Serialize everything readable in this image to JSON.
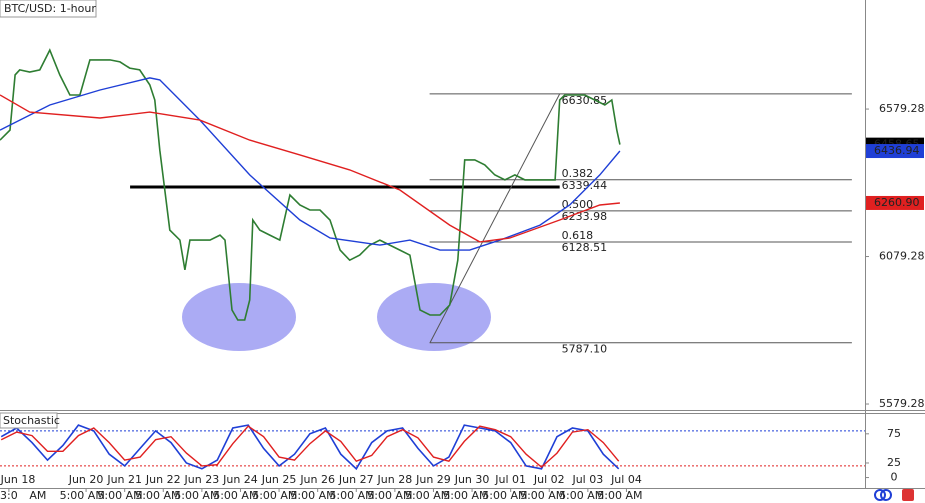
{
  "chart_data": [
    {
      "type": "line",
      "title": "BTC/USD: 1-hour",
      "xlim": [
        -0.23,
        22.18
      ],
      "ylim": [
        5559,
        6949
      ],
      "yticks": [
        5579.28,
        6079.28,
        6579.28
      ],
      "xticks": [
        {
          "value": 0,
          "label": "Jun 18"
        },
        {
          "value": 2,
          "label": "Jun 20"
        },
        {
          "value": 3,
          "label": "Jun 21"
        },
        {
          "value": 4,
          "label": "Jun 22"
        },
        {
          "value": 5,
          "label": "Jun 23"
        },
        {
          "value": 6,
          "label": "Jun 24"
        },
        {
          "value": 7,
          "label": "Jun 25"
        },
        {
          "value": 8,
          "label": "Jun 26"
        },
        {
          "value": 9,
          "label": "Jun 27"
        },
        {
          "value": 10,
          "label": "Jun 28"
        },
        {
          "value": 11,
          "label": "Jun 29"
        },
        {
          "value": 12,
          "label": "Jun 30"
        },
        {
          "value": 13,
          "label": "Jul 01"
        },
        {
          "value": 14,
          "label": "Jul 02"
        },
        {
          "value": 15,
          "label": "Jul 03"
        },
        {
          "value": 16,
          "label": "Jul 04"
        }
      ],
      "xticks_time": [
        {
          "value": 0.0,
          "label": "3:0"
        },
        {
          "value": 0.75,
          "label": "AM"
        },
        {
          "value": 1.9,
          "label": "5:00 AM"
        },
        {
          "value": 2.88,
          "label": "5:00 AM"
        },
        {
          "value": 3.86,
          "label": "5:00 AM"
        },
        {
          "value": 4.87,
          "label": "5:00 AM"
        },
        {
          "value": 5.88,
          "label": "5:00 AM"
        },
        {
          "value": 6.89,
          "label": "5:00 AM"
        },
        {
          "value": 7.88,
          "label": "5:00 AM"
        },
        {
          "value": 8.89,
          "label": "5:00 AM"
        },
        {
          "value": 9.87,
          "label": "5:00 AM"
        },
        {
          "value": 10.85,
          "label": "5:00 AM"
        },
        {
          "value": 11.84,
          "label": "5:00 AM"
        },
        {
          "value": 12.85,
          "label": "5:00 AM"
        },
        {
          "value": 13.83,
          "label": "5:00 AM"
        },
        {
          "value": 14.84,
          "label": "5:00 AM"
        },
        {
          "value": 15.83,
          "label": "5:00 AM"
        }
      ],
      "series": [
        {
          "color": "#2e7d32",
          "x": [
            -0.23,
            0.03,
            0.16,
            0.28,
            0.54,
            0.8,
            1.06,
            1.32,
            1.58,
            1.84,
            2.1,
            2.36,
            2.62,
            2.88,
            3.13,
            3.39,
            3.65,
            3.78,
            3.91,
            4.04,
            4.17,
            4.43,
            4.56,
            4.69,
            4.95,
            5.21,
            5.47,
            5.6,
            5.78,
            5.93,
            6.11,
            6.24,
            6.32,
            6.5,
            6.76,
            7.02,
            7.28,
            7.54,
            7.8,
            8.06,
            8.32,
            8.58,
            8.83,
            9.09,
            9.35,
            9.61,
            9.87,
            10.13,
            10.39,
            10.65,
            10.91,
            11.17,
            11.42,
            11.63,
            11.74,
            11.81,
            12.07,
            12.33,
            12.59,
            12.85,
            13.11,
            13.37,
            13.63,
            13.89,
            14.15,
            14.27,
            14.4,
            14.66,
            14.92,
            15.18,
            15.44,
            15.62,
            15.75,
            15.83
          ],
          "values": [
            6474,
            6508,
            6695,
            6712,
            6705,
            6712,
            6779,
            6695,
            6627,
            6627,
            6746,
            6746,
            6746,
            6739,
            6718,
            6712,
            6661,
            6610,
            6440,
            6305,
            6169,
            6135,
            6034,
            6135,
            6135,
            6135,
            6152,
            6135,
            5898,
            5864,
            5864,
            5932,
            6203,
            6169,
            6152,
            6135,
            6288,
            6254,
            6237,
            6237,
            6203,
            6101,
            6067,
            6084,
            6118,
            6135,
            6118,
            6101,
            6084,
            5898,
            5881,
            5881,
            5915,
            6067,
            6271,
            6407,
            6407,
            6390,
            6356,
            6339,
            6356,
            6339,
            6339,
            6339,
            6339,
            6610,
            6627,
            6627,
            6627,
            6610,
            6593,
            6610,
            6508,
            6458.65
          ]
        },
        {
          "color": "#1f3fd6",
          "x": [
            -0.23,
            1.06,
            2.36,
            3.65,
            3.91,
            4.95,
            6.24,
            7.54,
            8.32,
            9.61,
            10.39,
            11.17,
            11.94,
            12.72,
            13.76,
            14.53,
            15.31,
            15.83
          ],
          "values": [
            6508,
            6593,
            6644,
            6685,
            6678,
            6542,
            6356,
            6203,
            6142,
            6118,
            6135,
            6101,
            6101,
            6135,
            6186,
            6254,
            6356,
            6436.94
          ]
        },
        {
          "color": "#e02020",
          "x": [
            -0.23,
            0.54,
            2.36,
            3.65,
            4.95,
            6.24,
            7.54,
            8.83,
            10.13,
            11.42,
            12.2,
            12.98,
            14.27,
            15.31,
            15.83
          ],
          "values": [
            6627,
            6569,
            6549,
            6569,
            6542,
            6474,
            6424,
            6373,
            6305,
            6186,
            6129,
            6142,
            6203,
            6254,
            6260.9
          ]
        }
      ],
      "price_labels": [
        {
          "value": 6458.65,
          "label": "6458.65",
          "color": "#000000"
        },
        {
          "value": 6436.94,
          "label": "6436.94",
          "color": "#1f3fd6"
        },
        {
          "value": 6260.9,
          "label": "6260.90",
          "color": "#e02020"
        }
      ],
      "fib_high": 6630.85,
      "fib_low": {
        "value": 5787.1,
        "label": "5787.10"
      },
      "fib_x": [
        10.9,
        21.84
      ],
      "fib_levels": [
        {
          "ratio": "0.382",
          "value": 6339.44
        },
        {
          "ratio": "0.500",
          "value": 6233.98
        },
        {
          "ratio": "0.618",
          "value": 6128.51
        }
      ],
      "trend_x": [
        10.91,
        14.27
      ],
      "resistance": {
        "value": 6315,
        "x": [
          3.14,
          14.27
        ]
      }
    },
    {
      "type": "line",
      "title": "Stochastic",
      "xlim": [
        -0.23,
        22.18
      ],
      "ylim": [
        -17.9,
        110.7
      ],
      "yticks": [
        0,
        25,
        75
      ],
      "levels": [
        {
          "value": 80,
          "color": "#1f3fd6"
        },
        {
          "value": 20,
          "color": "#e02020"
        }
      ],
      "x": [
        -0.2,
        0.2,
        0.6,
        1.0,
        1.4,
        1.8,
        2.2,
        2.6,
        3.0,
        3.4,
        3.8,
        4.2,
        4.6,
        5.0,
        5.4,
        5.8,
        6.2,
        6.6,
        7.0,
        7.4,
        7.8,
        8.2,
        8.6,
        9.0,
        9.4,
        9.8,
        10.2,
        10.6,
        11.0,
        11.4,
        11.8,
        12.2,
        12.6,
        13.0,
        13.4,
        13.8,
        14.2,
        14.6,
        15.0,
        15.4,
        15.8
      ],
      "series": [
        {
          "color": "#1f3fd6",
          "values": [
            70,
            85,
            60,
            30,
            55,
            90,
            80,
            40,
            20,
            50,
            80,
            60,
            25,
            15,
            30,
            85,
            90,
            50,
            20,
            40,
            75,
            85,
            40,
            15,
            60,
            80,
            85,
            50,
            20,
            35,
            90,
            85,
            80,
            60,
            20,
            15,
            70,
            85,
            80,
            40,
            15
          ]
        },
        {
          "color": "#e02020",
          "values": [
            65,
            78,
            72,
            45,
            45,
            72,
            85,
            60,
            30,
            35,
            65,
            70,
            42,
            20,
            22,
            58,
            88,
            70,
            35,
            30,
            58,
            80,
            62,
            28,
            38,
            70,
            82,
            68,
            35,
            28,
            62,
            88,
            82,
            70,
            40,
            18,
            42,
            78,
            82,
            60,
            28
          ]
        }
      ]
    }
  ]
}
